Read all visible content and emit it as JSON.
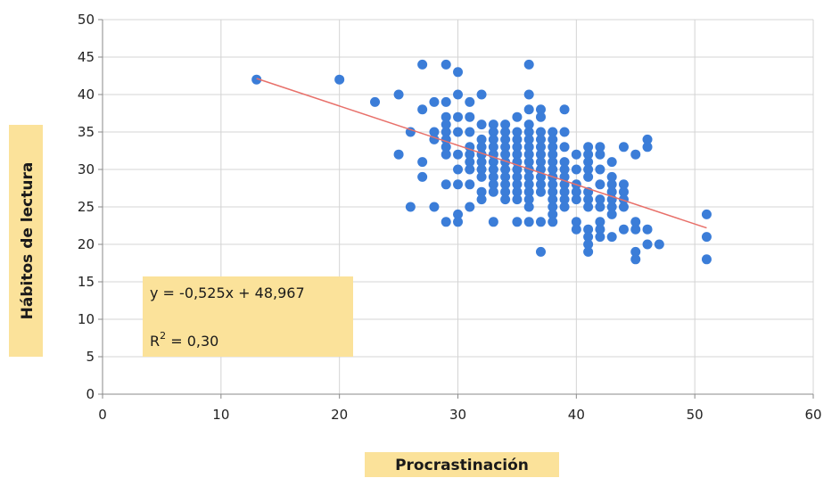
{
  "chart_data": {
    "type": "scatter",
    "title": "",
    "xlabel": "Procrastinación",
    "ylabel": "Hábitos de lectura",
    "xlim": [
      0,
      60
    ],
    "ylim": [
      0,
      50
    ],
    "xticks": [
      0,
      10,
      20,
      30,
      40,
      50,
      60
    ],
    "yticks": [
      0,
      5,
      10,
      15,
      20,
      25,
      30,
      35,
      40,
      45,
      50
    ],
    "grid": true,
    "marker_color": "#3b7dd8",
    "trendline_color": "#e8706a",
    "label_background": "#fbe29a",
    "trendline": {
      "slope": -0.525,
      "intercept": 48.967,
      "x_range": [
        13,
        51
      ],
      "equation": "y = -0,525x + 48,967",
      "r2_label": "R",
      "r2_sup": "2",
      "r2_value": " = 0,30"
    },
    "points": [
      [
        13,
        42
      ],
      [
        20,
        42
      ],
      [
        23,
        39
      ],
      [
        25,
        40
      ],
      [
        25,
        32
      ],
      [
        26,
        25
      ],
      [
        26,
        35
      ],
      [
        27,
        44
      ],
      [
        27,
        38
      ],
      [
        27,
        31
      ],
      [
        27,
        29
      ],
      [
        28,
        39
      ],
      [
        28,
        35
      ],
      [
        28,
        34
      ],
      [
        28,
        25
      ],
      [
        29,
        44
      ],
      [
        29,
        39
      ],
      [
        29,
        37
      ],
      [
        29,
        36
      ],
      [
        29,
        35
      ],
      [
        29,
        34
      ],
      [
        29,
        33
      ],
      [
        29,
        32
      ],
      [
        29,
        28
      ],
      [
        29,
        23
      ],
      [
        30,
        43
      ],
      [
        30,
        40
      ],
      [
        30,
        37
      ],
      [
        30,
        35
      ],
      [
        30,
        32
      ],
      [
        30,
        30
      ],
      [
        30,
        28
      ],
      [
        30,
        24
      ],
      [
        30,
        23
      ],
      [
        31,
        39
      ],
      [
        31,
        37
      ],
      [
        31,
        35
      ],
      [
        31,
        33
      ],
      [
        31,
        32
      ],
      [
        31,
        31
      ],
      [
        31,
        30
      ],
      [
        31,
        28
      ],
      [
        31,
        25
      ],
      [
        32,
        40
      ],
      [
        32,
        36
      ],
      [
        32,
        34
      ],
      [
        32,
        33
      ],
      [
        32,
        32
      ],
      [
        32,
        31
      ],
      [
        32,
        30
      ],
      [
        32,
        29
      ],
      [
        32,
        27
      ],
      [
        32,
        26
      ],
      [
        33,
        36
      ],
      [
        33,
        35
      ],
      [
        33,
        34
      ],
      [
        33,
        33
      ],
      [
        33,
        32
      ],
      [
        33,
        31
      ],
      [
        33,
        30
      ],
      [
        33,
        29
      ],
      [
        33,
        28
      ],
      [
        33,
        27
      ],
      [
        33,
        23
      ],
      [
        34,
        36
      ],
      [
        34,
        35
      ],
      [
        34,
        34
      ],
      [
        34,
        33
      ],
      [
        34,
        32
      ],
      [
        34,
        31
      ],
      [
        34,
        30
      ],
      [
        34,
        29
      ],
      [
        34,
        28
      ],
      [
        34,
        27
      ],
      [
        34,
        26
      ],
      [
        35,
        37
      ],
      [
        35,
        35
      ],
      [
        35,
        34
      ],
      [
        35,
        33
      ],
      [
        35,
        32
      ],
      [
        35,
        31
      ],
      [
        35,
        30
      ],
      [
        35,
        29
      ],
      [
        35,
        28
      ],
      [
        35,
        27
      ],
      [
        35,
        26
      ],
      [
        35,
        23
      ],
      [
        36,
        44
      ],
      [
        36,
        40
      ],
      [
        36,
        38
      ],
      [
        36,
        36
      ],
      [
        36,
        35
      ],
      [
        36,
        34
      ],
      [
        36,
        33
      ],
      [
        36,
        32
      ],
      [
        36,
        31
      ],
      [
        36,
        30
      ],
      [
        36,
        29
      ],
      [
        36,
        28
      ],
      [
        36,
        27
      ],
      [
        36,
        26
      ],
      [
        36,
        25
      ],
      [
        36,
        23
      ],
      [
        37,
        38
      ],
      [
        37,
        37
      ],
      [
        37,
        35
      ],
      [
        37,
        34
      ],
      [
        37,
        33
      ],
      [
        37,
        32
      ],
      [
        37,
        31
      ],
      [
        37,
        30
      ],
      [
        37,
        29
      ],
      [
        37,
        28
      ],
      [
        37,
        27
      ],
      [
        37,
        23
      ],
      [
        37,
        19
      ],
      [
        38,
        35
      ],
      [
        38,
        34
      ],
      [
        38,
        33
      ],
      [
        38,
        32
      ],
      [
        38,
        31
      ],
      [
        38,
        30
      ],
      [
        38,
        29
      ],
      [
        38,
        28
      ],
      [
        38,
        27
      ],
      [
        38,
        26
      ],
      [
        38,
        25
      ],
      [
        38,
        24
      ],
      [
        38,
        23
      ],
      [
        39,
        38
      ],
      [
        39,
        35
      ],
      [
        39,
        33
      ],
      [
        39,
        31
      ],
      [
        39,
        30
      ],
      [
        39,
        29
      ],
      [
        39,
        28
      ],
      [
        39,
        27
      ],
      [
        39,
        26
      ],
      [
        39,
        25
      ],
      [
        40,
        32
      ],
      [
        40,
        30
      ],
      [
        40,
        28
      ],
      [
        40,
        27
      ],
      [
        40,
        26
      ],
      [
        40,
        23
      ],
      [
        40,
        22
      ],
      [
        41,
        33
      ],
      [
        41,
        32
      ],
      [
        41,
        31
      ],
      [
        41,
        30
      ],
      [
        41,
        29
      ],
      [
        41,
        27
      ],
      [
        41,
        26
      ],
      [
        41,
        25
      ],
      [
        41,
        22
      ],
      [
        41,
        21
      ],
      [
        41,
        20
      ],
      [
        41,
        19
      ],
      [
        42,
        33
      ],
      [
        42,
        32
      ],
      [
        42,
        30
      ],
      [
        42,
        28
      ],
      [
        42,
        26
      ],
      [
        42,
        25
      ],
      [
        42,
        23
      ],
      [
        42,
        22
      ],
      [
        42,
        21
      ],
      [
        43,
        31
      ],
      [
        43,
        29
      ],
      [
        43,
        28
      ],
      [
        43,
        27
      ],
      [
        43,
        26
      ],
      [
        43,
        25
      ],
      [
        43,
        24
      ],
      [
        43,
        21
      ],
      [
        44,
        33
      ],
      [
        44,
        28
      ],
      [
        44,
        27
      ],
      [
        44,
        26
      ],
      [
        44,
        25
      ],
      [
        44,
        22
      ],
      [
        45,
        32
      ],
      [
        45,
        23
      ],
      [
        45,
        22
      ],
      [
        45,
        19
      ],
      [
        45,
        18
      ],
      [
        46,
        34
      ],
      [
        46,
        33
      ],
      [
        46,
        22
      ],
      [
        46,
        20
      ],
      [
        47,
        20
      ],
      [
        51,
        24
      ],
      [
        51,
        21
      ],
      [
        51,
        18
      ]
    ]
  }
}
